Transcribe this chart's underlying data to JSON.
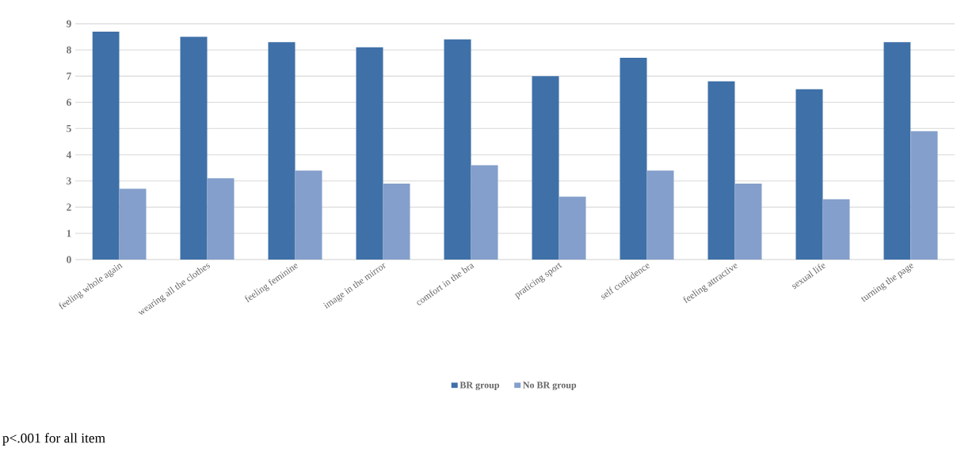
{
  "chart_data": {
    "type": "bar",
    "categories": [
      "feeling whole again",
      "wearing all the clothes",
      "feeling feminine",
      "image in the mirror",
      "comfort in the bra",
      "praticing sport",
      "self confidence",
      "feeling attractive",
      "sexual life",
      "turning the page"
    ],
    "series": [
      {
        "name": "BR group",
        "color": "#3f70a8",
        "values": [
          8.7,
          8.5,
          8.3,
          8.1,
          8.4,
          7.0,
          7.7,
          6.8,
          6.5,
          8.3
        ]
      },
      {
        "name": "No BR group",
        "color": "#849fcb",
        "values": [
          2.7,
          3.1,
          3.4,
          2.9,
          3.6,
          2.4,
          3.4,
          2.9,
          2.3,
          4.9
        ]
      }
    ],
    "ylim": [
      0,
      9
    ],
    "yticks": [
      0,
      1,
      2,
      3,
      4,
      5,
      6,
      7,
      8,
      9
    ],
    "grid": "y",
    "legend": "bottom",
    "annotations": [
      "p<.001 for all item"
    ]
  }
}
